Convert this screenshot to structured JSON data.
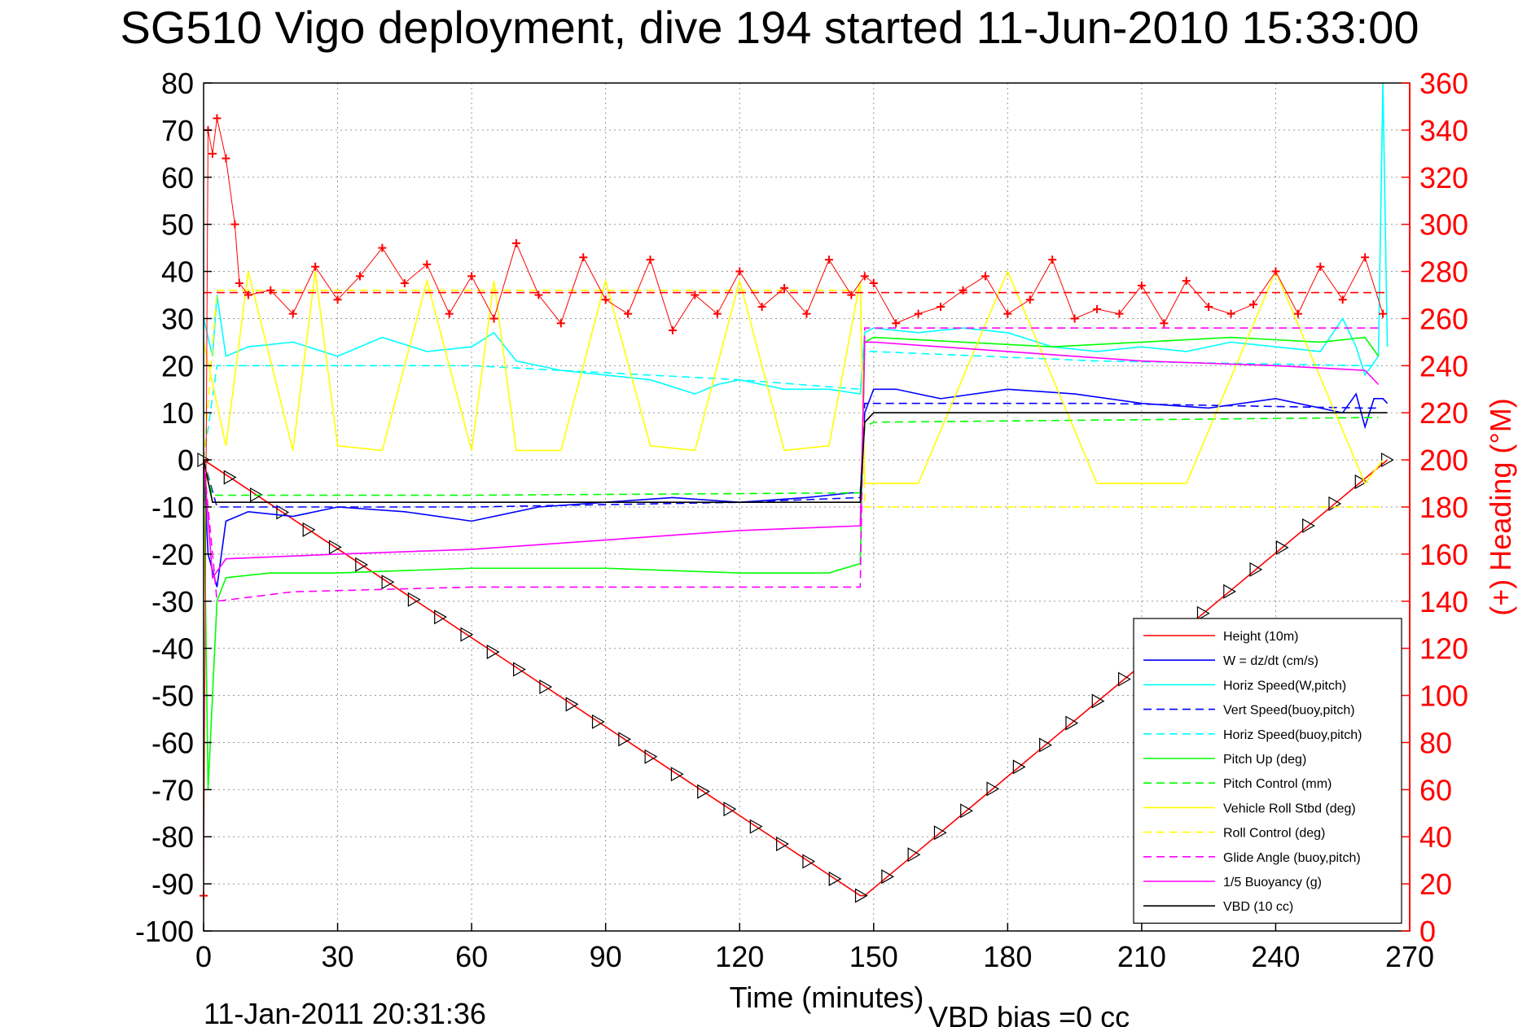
{
  "chart_data": {
    "type": "line",
    "title": "SG510 Vigo deployment, dive 194 started 11-Jun-2010 15:33:00",
    "xlabel": "Time (minutes)",
    "ylabel": "",
    "y2label": "(+) Heading (°M)",
    "xlim": [
      0,
      270
    ],
    "ylim": [
      -100,
      80
    ],
    "y2lim": [
      0,
      360
    ],
    "xticks": [
      0,
      30,
      60,
      90,
      120,
      150,
      180,
      210,
      240,
      270
    ],
    "yticks": [
      80,
      70,
      60,
      50,
      40,
      30,
      20,
      10,
      0,
      -10,
      -20,
      -30,
      -40,
      -50,
      -60,
      -70,
      -80,
      -90,
      -100
    ],
    "y2ticks": [
      360,
      340,
      320,
      300,
      280,
      260,
      240,
      220,
      200,
      180,
      160,
      140,
      120,
      100,
      80,
      60,
      40,
      20,
      0
    ],
    "grid": true,
    "legend_position": "bottom-right",
    "footer_left": "11-Jan-2011 20:31:36",
    "footer_right": "VBD bias =0 cc",
    "colors": {
      "red": "#ff0000",
      "blue": "#0000ff",
      "cyan": "#00ffff",
      "green": "#00ff00",
      "yellow": "#ffff00",
      "magenta": "#ff00ff",
      "black": "#000000"
    },
    "series": [
      {
        "name": "Height (10m)",
        "color": "#ff0000",
        "dash": "solid",
        "marker": "triangle",
        "x": [
          0,
          147,
          148,
          265
        ],
        "y": [
          0,
          -92.5,
          -92.5,
          0
        ]
      },
      {
        "name": "W = dz/dt (cm/s)",
        "color": "#0000ff",
        "dash": "solid",
        "x": [
          0,
          1,
          3,
          5,
          10,
          20,
          30,
          45,
          60,
          75,
          90,
          105,
          120,
          135,
          145,
          147,
          148,
          150,
          155,
          165,
          180,
          195,
          210,
          225,
          240,
          255,
          258,
          260,
          262,
          264,
          265
        ],
        "y": [
          0,
          -20,
          -27,
          -13,
          -11,
          -12,
          -10,
          -11,
          -13,
          -10,
          -9,
          -8,
          -9,
          -8,
          -7,
          -7,
          10,
          15,
          15,
          13,
          15,
          14,
          12,
          11,
          13,
          10,
          14,
          7,
          13,
          13,
          12
        ]
      },
      {
        "name": "Horiz Speed(W,pitch)",
        "color": "#00ffff",
        "dash": "solid",
        "x": [
          0,
          2,
          3,
          5,
          10,
          20,
          30,
          40,
          50,
          60,
          65,
          70,
          80,
          90,
          100,
          110,
          115,
          120,
          130,
          140,
          147,
          148,
          150,
          160,
          170,
          180,
          190,
          200,
          210,
          220,
          230,
          240,
          250,
          255,
          258,
          260,
          263,
          264,
          265
        ],
        "y": [
          30,
          22,
          35,
          22,
          24,
          25,
          22,
          26,
          23,
          24,
          27,
          21,
          19,
          18,
          17,
          14,
          16,
          17,
          15,
          15,
          14,
          27,
          28,
          27,
          28,
          27,
          24,
          23,
          24,
          23,
          25,
          24,
          23,
          30,
          24,
          18,
          22,
          80,
          24
        ]
      },
      {
        "name": "Vert Speed(buoy,pitch)",
        "color": "#0000ff",
        "dash": "dashed",
        "x": [
          0,
          3,
          10,
          60,
          120,
          147,
          148,
          150,
          200,
          260,
          263
        ],
        "y": [
          0,
          -10,
          -10,
          -10,
          -9,
          -8,
          12,
          12,
          12,
          11,
          11
        ]
      },
      {
        "name": "Horiz Speed(buoy,pitch)",
        "color": "#00ffff",
        "dash": "dashed",
        "x": [
          0,
          3,
          60,
          120,
          147,
          148,
          150,
          200,
          260,
          263
        ],
        "y": [
          0,
          20,
          20,
          17,
          15,
          23,
          23,
          21,
          20,
          20
        ]
      },
      {
        "name": "Pitch Up (deg)",
        "color": "#00ff00",
        "dash": "solid",
        "x": [
          0,
          1,
          3,
          5,
          15,
          30,
          60,
          90,
          120,
          140,
          147,
          148,
          150,
          170,
          190,
          210,
          230,
          250,
          260,
          263
        ],
        "y": [
          0,
          -70,
          -30,
          -25,
          -24,
          -24,
          -23,
          -23,
          -24,
          -24,
          -22,
          25,
          26,
          25,
          24,
          25,
          26,
          25,
          26,
          22
        ]
      },
      {
        "name": "Pitch Control (mm)",
        "color": "#00ff00",
        "dash": "dashed",
        "x": [
          0,
          2,
          60,
          147,
          148,
          150,
          263
        ],
        "y": [
          0,
          -7.5,
          -7.5,
          -7,
          7,
          8,
          9
        ]
      },
      {
        "name": "Vehicle Roll Stbd (deg)",
        "color": "#ffff00",
        "dash": "solid",
        "x": [
          0,
          5,
          10,
          20,
          25,
          30,
          40,
          50,
          60,
          65,
          70,
          80,
          90,
          100,
          110,
          120,
          130,
          140,
          147,
          148,
          160,
          180,
          200,
          220,
          240,
          260,
          264
        ],
        "y": [
          25,
          3,
          40,
          2,
          40,
          3,
          2,
          38,
          2,
          38,
          2,
          2,
          38,
          3,
          2,
          38,
          2,
          3,
          38,
          -5,
          -5,
          40,
          -5,
          -5,
          40,
          -5,
          0
        ]
      },
      {
        "name": "Roll Control (deg)",
        "color": "#ffff00",
        "dash": "dashed",
        "x": [
          0,
          3,
          60,
          147,
          148,
          264
        ],
        "y": [
          0,
          36,
          36,
          36,
          -10,
          -10
        ]
      },
      {
        "name": "Glide Angle (buoy,pitch)",
        "color": "#ff00ff",
        "dash": "dashed",
        "x": [
          0,
          3,
          20,
          60,
          120,
          147,
          148,
          150,
          200,
          260,
          263
        ],
        "y": [
          0,
          -30,
          -28,
          -27,
          -27,
          -27,
          28,
          28,
          28,
          28,
          28
        ]
      },
      {
        "name": "1/5 Buoyancy (g)",
        "color": "#ff00ff",
        "dash": "solid",
        "x": [
          0,
          2,
          5,
          30,
          60,
          90,
          120,
          147,
          148,
          150,
          180,
          210,
          240,
          260,
          263
        ],
        "y": [
          0,
          -25,
          -21,
          -20,
          -19,
          -17,
          -15,
          -14,
          25,
          25,
          23,
          21,
          20,
          19,
          16
        ]
      },
      {
        "name": "VBD (10 cc)",
        "color": "#000000",
        "dash": "solid",
        "x": [
          0,
          2,
          147,
          148,
          150,
          265
        ],
        "y": [
          0,
          -9,
          -9,
          8,
          10,
          10
        ]
      },
      {
        "name": "",
        "color": "#ff0000",
        "dash": "dashed",
        "axis": "right",
        "x": [
          0,
          265
        ],
        "y": [
          271,
          271
        ]
      },
      {
        "name": "",
        "color": "#ff0000",
        "marker": "plus",
        "axis": "right",
        "x": [
          0,
          1,
          2,
          3,
          5,
          7,
          8,
          10,
          15,
          20,
          25,
          30,
          35,
          40,
          45,
          50,
          55,
          60,
          65,
          70,
          75,
          80,
          85,
          90,
          95,
          100,
          105,
          110,
          115,
          120,
          125,
          130,
          135,
          140,
          145,
          148,
          150,
          155,
          160,
          165,
          170,
          175,
          180,
          185,
          190,
          195,
          200,
          205,
          210,
          215,
          220,
          225,
          230,
          235,
          240,
          245,
          250,
          255,
          260,
          264
        ],
        "y": [
          15,
          340,
          330,
          345,
          328,
          300,
          275,
          270,
          272,
          262,
          282,
          268,
          278,
          290,
          275,
          283,
          262,
          278,
          260,
          292,
          270,
          258,
          286,
          268,
          262,
          285,
          255,
          270,
          262,
          280,
          265,
          273,
          262,
          285,
          270,
          278,
          275,
          258,
          262,
          265,
          272,
          278,
          262,
          268,
          285,
          260,
          264,
          262,
          274,
          258,
          276,
          265,
          262,
          266,
          280,
          262,
          282,
          268,
          286,
          262
        ]
      }
    ]
  }
}
